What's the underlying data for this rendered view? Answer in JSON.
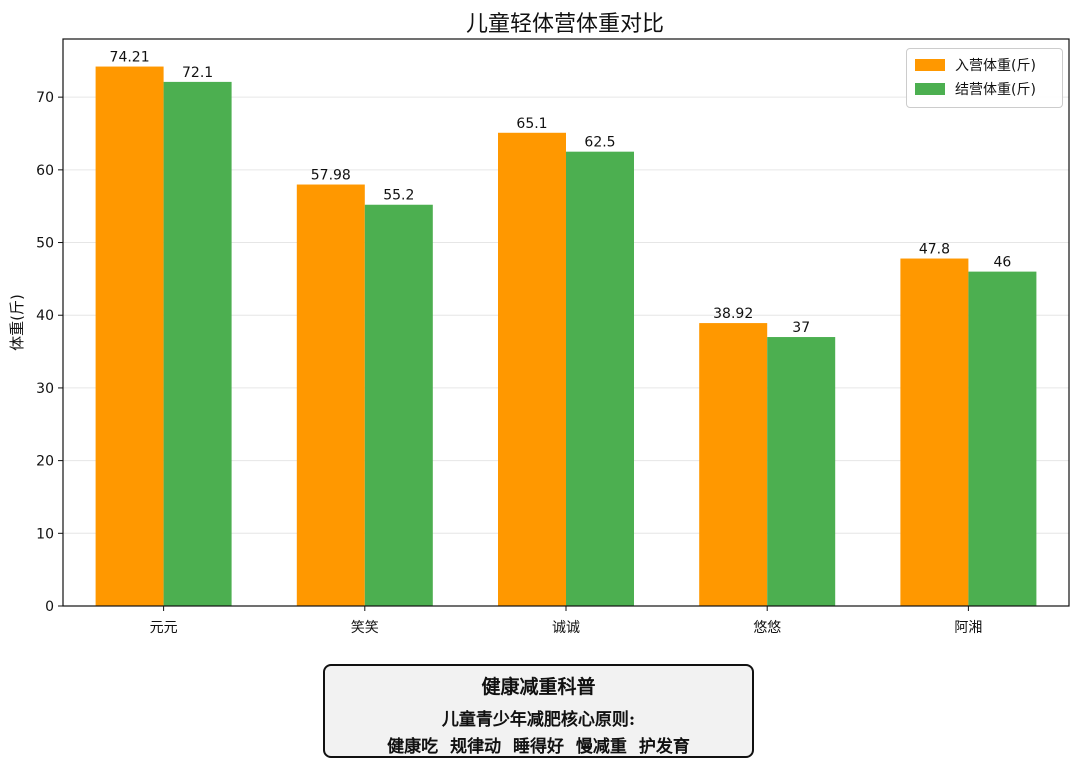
{
  "chart_data": {
    "type": "bar",
    "title": "儿童轻体营体重对比",
    "xlabel": "",
    "ylabel": "体重(斤)",
    "categories": [
      "元元",
      "笑笑",
      "诚诚",
      "悠悠",
      "阿湘"
    ],
    "series": [
      {
        "name": "入营体重(斤)",
        "values": [
          74.21,
          57.98,
          65.1,
          38.92,
          47.8
        ],
        "color": "#ff9800"
      },
      {
        "name": "结营体重(斤)",
        "values": [
          72.1,
          55.2,
          62.5,
          37,
          46
        ],
        "color": "#4caf50"
      }
    ],
    "value_labels": [
      [
        "74.21",
        "57.98",
        "65.1",
        "38.92",
        "47.8"
      ],
      [
        "72.1",
        "55.2",
        "62.5",
        "37",
        "46"
      ]
    ],
    "y_ticks": [
      0,
      10,
      20,
      30,
      40,
      50,
      60,
      70
    ],
    "ylim": [
      0,
      78
    ],
    "grid": "horizontal",
    "legend_position": "top-right"
  },
  "info_box": {
    "title": "健康减重科普",
    "line1": "儿童青少年减肥核心原则:",
    "line2": "健康吃 规律动 睡得好 慢减重 护发育"
  }
}
